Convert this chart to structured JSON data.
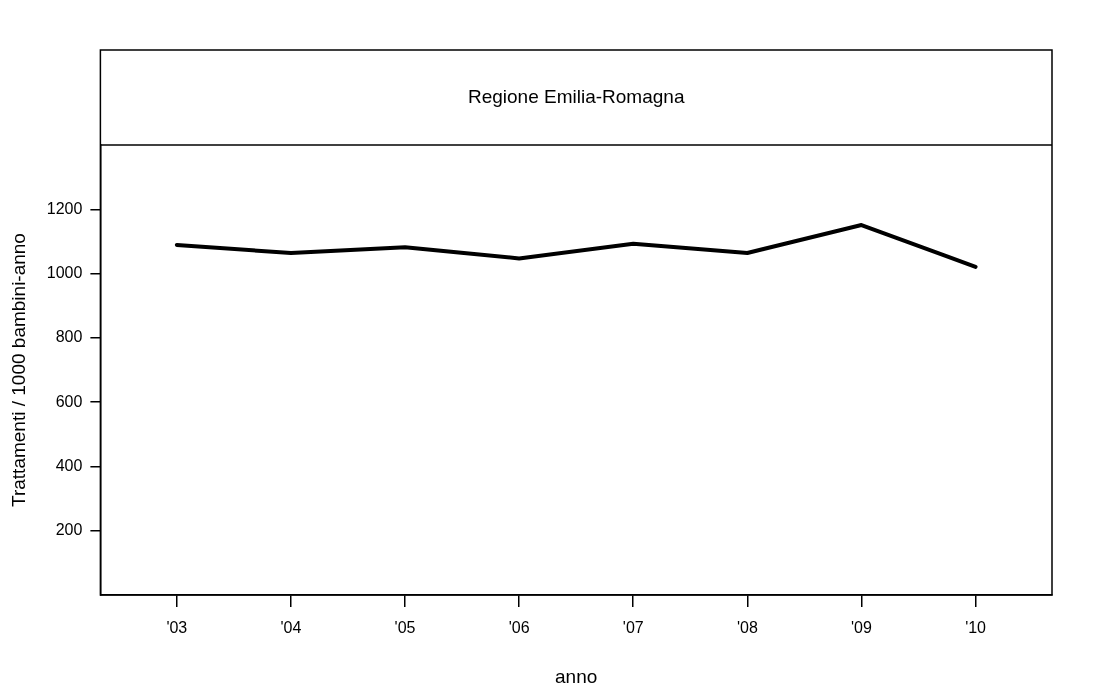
{
  "chart_data": {
    "type": "line",
    "title": "Regione Emilia-Romagna",
    "xlabel": "anno",
    "ylabel": "Trattamenti / 1000 bambini-anno",
    "x": [
      2003,
      2004,
      2005,
      2006,
      2007,
      2008,
      2009,
      2010
    ],
    "series": [
      {
        "color": "#000000",
        "values": [
          1089,
          1064,
          1082,
          1047,
          1093,
          1064,
          1151,
          1021
        ]
      }
    ],
    "xlim": [
      2002.33,
      2010.67
    ],
    "ylim": [
      0,
      1400
    ],
    "xticks": [
      {
        "value": 2003,
        "label": "'03"
      },
      {
        "value": 2004,
        "label": "'04"
      },
      {
        "value": 2005,
        "label": "'05"
      },
      {
        "value": 2006,
        "label": "'06"
      },
      {
        "value": 2007,
        "label": "'07"
      },
      {
        "value": 2008,
        "label": "'08"
      },
      {
        "value": 2009,
        "label": "'09"
      },
      {
        "value": 2010,
        "label": "'10"
      }
    ],
    "yticks": [
      200,
      400,
      600,
      800,
      1000,
      1200
    ],
    "grid": false,
    "legend": false,
    "marker": "none",
    "line_style": "solid"
  }
}
